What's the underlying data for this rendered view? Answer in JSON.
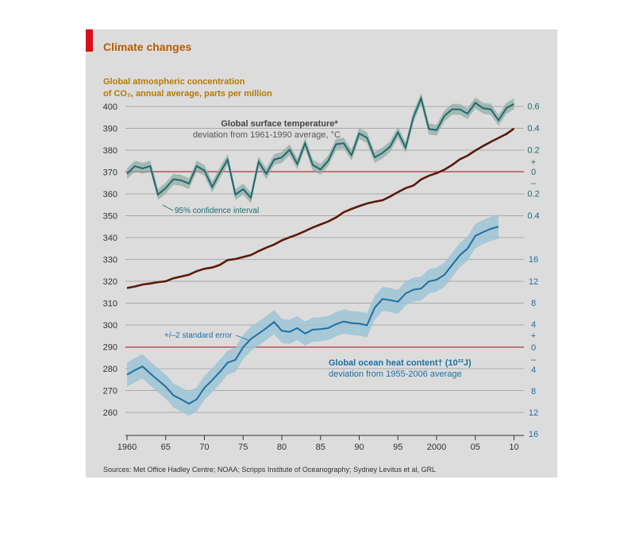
{
  "title": "Climate changes",
  "subtitle_line1": "Global atmospheric concentration",
  "subtitle_line2": "of CO₂, annual average, parts per million",
  "source": "Sources: Met Office Hadley Centre; NOAA; Scripps Institute of Oceanography; Sydney Levitus et al, GRL",
  "colors": {
    "background": "#dcdcdc",
    "co2": "#5a1a0a",
    "temperature": "#1d6b6b",
    "temperature_band": "#8fa8a3",
    "ocean": "#1f6fa0",
    "ocean_band": "#9ec4d6",
    "reference_line": "#c0252b",
    "title": "#b85c00",
    "accent_bar": "#d8101c"
  },
  "chart_data": {
    "type": "line",
    "title": "Climate changes",
    "x_ticks": [
      "1960",
      "65",
      "70",
      "75",
      "80",
      "85",
      "90",
      "95",
      "2000",
      "05",
      "10"
    ],
    "xlim": [
      1959,
      2011
    ],
    "left_axis": {
      "label": "Global atmospheric concentration of CO₂, annual average, parts per million",
      "ylim": [
        255,
        401
      ],
      "ticks": [
        "400",
        "390",
        "380",
        "370",
        "360",
        "350",
        "340",
        "330",
        "320",
        "310",
        "300",
        "290",
        "280",
        "270",
        "260"
      ]
    },
    "right_axis_temperature": {
      "ticks": [
        "0.6",
        "0.4",
        "0.2",
        "+",
        "0",
        "–",
        "0.2",
        "0.4"
      ],
      "tick_values": [
        0.6,
        0.4,
        0.2,
        0,
        -0.2,
        -0.4
      ]
    },
    "right_axis_ocean": {
      "ticks": [
        "16",
        "12",
        "8",
        "4",
        "+",
        "0",
        "–",
        "4",
        "8",
        "12",
        "16"
      ],
      "tick_values": [
        16,
        12,
        8,
        4,
        0,
        -4,
        -8,
        -12,
        -16
      ]
    },
    "series": [
      {
        "name": "CO₂",
        "x": [
          1960,
          1961,
          1962,
          1963,
          1964,
          1965,
          1966,
          1967,
          1968,
          1969,
          1970,
          1971,
          1972,
          1973,
          1974,
          1975,
          1976,
          1977,
          1978,
          1979,
          1980,
          1981,
          1982,
          1983,
          1984,
          1985,
          1986,
          1987,
          1988,
          1989,
          1990,
          1991,
          1992,
          1993,
          1994,
          1995,
          1996,
          1997,
          1998,
          1999,
          2000,
          2001,
          2002,
          2003,
          2004,
          2005,
          2006,
          2007,
          2008,
          2009,
          2010
        ],
        "y": [
          316.9,
          317.6,
          318.5,
          319.0,
          319.6,
          320.0,
          321.4,
          322.2,
          323.0,
          324.6,
          325.7,
          326.3,
          327.5,
          329.7,
          330.2,
          331.1,
          332.0,
          333.8,
          335.4,
          336.8,
          338.7,
          340.1,
          341.4,
          343.0,
          344.6,
          346.0,
          347.4,
          349.2,
          351.6,
          353.1,
          354.4,
          355.6,
          356.4,
          357.1,
          358.8,
          360.8,
          362.6,
          363.8,
          366.6,
          368.3,
          369.5,
          371.1,
          373.2,
          375.8,
          377.5,
          379.8,
          381.9,
          383.8,
          385.6,
          387.4,
          389.9
        ]
      },
      {
        "name": "Global surface temperature*",
        "annotation": "deviation from 1961-1990 average, °C",
        "band_label": "95% confidence interval",
        "x": [
          1960,
          1961,
          1962,
          1963,
          1964,
          1965,
          1966,
          1967,
          1968,
          1969,
          1970,
          1971,
          1972,
          1973,
          1974,
          1975,
          1976,
          1977,
          1978,
          1979,
          1980,
          1981,
          1982,
          1983,
          1984,
          1985,
          1986,
          1987,
          1988,
          1989,
          1990,
          1991,
          1992,
          1993,
          1994,
          1995,
          1996,
          1997,
          1998,
          1999,
          2000,
          2001,
          2002,
          2003,
          2004,
          2005,
          2006,
          2007,
          2008,
          2009,
          2010
        ],
        "y": [
          -0.02,
          0.05,
          0.03,
          0.05,
          -0.21,
          -0.15,
          -0.07,
          -0.08,
          -0.11,
          0.05,
          0.01,
          -0.14,
          -0.01,
          0.11,
          -0.21,
          -0.16,
          -0.24,
          0.09,
          -0.02,
          0.11,
          0.13,
          0.2,
          0.07,
          0.26,
          0.06,
          0.02,
          0.1,
          0.25,
          0.26,
          0.15,
          0.35,
          0.31,
          0.13,
          0.17,
          0.23,
          0.36,
          0.22,
          0.5,
          0.67,
          0.39,
          0.38,
          0.51,
          0.57,
          0.57,
          0.53,
          0.63,
          0.58,
          0.57,
          0.47,
          0.58,
          0.62
        ],
        "band_halfwidth": 0.05
      },
      {
        "name": "Global ocean heat content† (10²²J)",
        "annotation": "deviation from 1955-2006 average",
        "band_label": "+/–2 standard error",
        "x": [
          1960,
          1961,
          1962,
          1963,
          1964,
          1965,
          1966,
          1967,
          1968,
          1969,
          1970,
          1971,
          1972,
          1973,
          1974,
          1975,
          1976,
          1977,
          1978,
          1979,
          1980,
          1981,
          1982,
          1983,
          1984,
          1985,
          1986,
          1987,
          1988,
          1989,
          1990,
          1991,
          1992,
          1993,
          1994,
          1995,
          1996,
          1997,
          1998,
          1999,
          2000,
          2001,
          2002,
          2003,
          2004,
          2005,
          2006,
          2007,
          2008
        ],
        "y": [
          -5.0,
          -4.2,
          -3.5,
          -4.8,
          -6.0,
          -7.2,
          -8.8,
          -9.5,
          -10.3,
          -9.5,
          -7.4,
          -6.0,
          -4.5,
          -2.8,
          -2.3,
          0.0,
          1.5,
          2.5,
          3.5,
          4.6,
          3.0,
          2.8,
          3.5,
          2.5,
          3.2,
          3.3,
          3.5,
          4.2,
          4.7,
          4.4,
          4.3,
          4.0,
          7.2,
          8.8,
          8.6,
          8.3,
          9.8,
          10.5,
          10.7,
          12.0,
          12.3,
          13.2,
          15.0,
          16.8,
          18.0,
          20.3,
          21.0,
          21.6,
          22.0
        ],
        "y_display_offset": 0,
        "band_halfwidth": 2.2
      }
    ],
    "reference_lines": [
      {
        "series": "Global surface temperature*",
        "value": 0
      },
      {
        "series": "Global ocean heat content† (10²²J)",
        "value": 0
      }
    ],
    "grid": true
  }
}
